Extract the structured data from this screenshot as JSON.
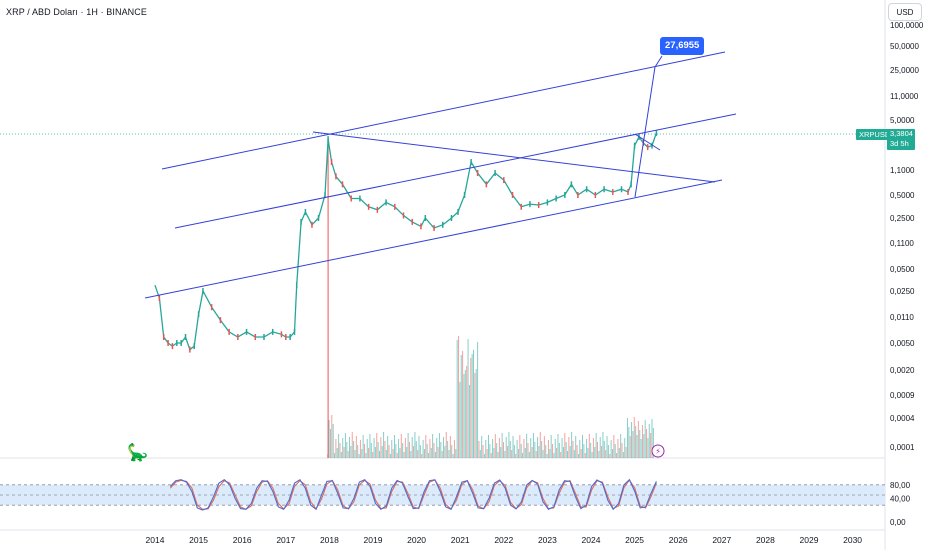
{
  "header": {
    "title": "XRP / ABD Doları · 1H · BINANCE",
    "currency_button": "USD"
  },
  "price_label": {
    "symbol": "XRPUSD",
    "price": "3,3804",
    "countdown": "3d 5h"
  },
  "target_callout": "27,6955",
  "colors": {
    "up": "#26a69a",
    "down": "#ef5350",
    "channel": "#3441d9",
    "rsi_fast": "#4a6bd8",
    "rsi_slow": "#e66a50",
    "rsi_band": "#dcebfb"
  },
  "chart_data": [
    {
      "type": "line",
      "title": "XRP / ABD Doları · 1H · BINANCE",
      "xlabel": "",
      "ylabel": "",
      "y_scale": "log",
      "x_ticks": [
        "2014",
        "2015",
        "2016",
        "2017",
        "2018",
        "2019",
        "2020",
        "2021",
        "2022",
        "2023",
        "2024",
        "2025",
        "2026",
        "2027",
        "2028",
        "2029",
        "2030"
      ],
      "y_ticks": [
        "100,0000",
        "50,0000",
        "25,0000",
        "11,0000",
        "5,0000",
        "1,1000",
        "0,5000",
        "0,2500",
        "0,1100",
        "0,0500",
        "0,0250",
        "0,0110",
        "0,0050",
        "0,0020",
        "0,0009",
        "0,0004",
        "0,0001"
      ],
      "series": [
        {
          "name": "XRPUSD",
          "x": [
            2014.0,
            2014.1,
            2014.2,
            2014.3,
            2014.4,
            2014.5,
            2014.6,
            2014.7,
            2014.8,
            2014.9,
            2015.0,
            2015.1,
            2015.3,
            2015.5,
            2015.7,
            2015.9,
            2016.1,
            2016.3,
            2016.5,
            2016.7,
            2016.9,
            2017.0,
            2017.1,
            2017.2,
            2017.25,
            2017.35,
            2017.45,
            2017.6,
            2017.75,
            2017.9,
            2017.97,
            2018.05,
            2018.15,
            2018.3,
            2018.5,
            2018.7,
            2018.9,
            2019.1,
            2019.3,
            2019.5,
            2019.7,
            2019.9,
            2020.1,
            2020.2,
            2020.4,
            2020.6,
            2020.8,
            2020.95,
            2021.1,
            2021.25,
            2021.4,
            2021.6,
            2021.8,
            2022.0,
            2022.2,
            2022.4,
            2022.6,
            2022.8,
            2023.0,
            2023.2,
            2023.4,
            2023.55,
            2023.7,
            2023.9,
            2024.1,
            2024.3,
            2024.5,
            2024.7,
            2024.85,
            2024.92,
            2025.0,
            2025.1,
            2025.2,
            2025.3,
            2025.4,
            2025.5
          ],
          "values": [
            0.03,
            0.02,
            0.006,
            0.005,
            0.0045,
            0.005,
            0.005,
            0.006,
            0.004,
            0.0045,
            0.012,
            0.025,
            0.015,
            0.01,
            0.007,
            0.006,
            0.007,
            0.006,
            0.006,
            0.007,
            0.0065,
            0.006,
            0.006,
            0.007,
            0.03,
            0.22,
            0.3,
            0.2,
            0.25,
            0.5,
            2.8,
            1.4,
            0.9,
            0.7,
            0.45,
            0.45,
            0.35,
            0.32,
            0.4,
            0.35,
            0.27,
            0.22,
            0.19,
            0.25,
            0.18,
            0.2,
            0.25,
            0.3,
            0.5,
            1.4,
            1.0,
            0.7,
            1.0,
            0.8,
            0.5,
            0.35,
            0.38,
            0.37,
            0.4,
            0.45,
            0.5,
            0.7,
            0.5,
            0.6,
            0.5,
            0.6,
            0.55,
            0.6,
            0.55,
            0.7,
            2.3,
            3.0,
            2.5,
            2.2,
            2.3,
            3.38
          ]
        }
      ],
      "annotations": [
        "27,6955"
      ],
      "last_price": "3,3804"
    },
    {
      "type": "line",
      "title": "",
      "xlabel": "",
      "ylabel": "",
      "y_ticks": [
        "80,00",
        "40,00",
        "0,00"
      ],
      "ylim": [
        0,
        100
      ],
      "bands": [
        20,
        50,
        80
      ],
      "series": [
        {
          "name": "",
          "values": [
            75,
            92,
            95,
            88,
            60,
            12,
            6,
            12,
            45,
            85,
            95,
            80,
            40,
            10,
            8,
            25,
            70,
            92,
            90,
            60,
            15,
            8,
            35,
            85,
            95,
            70,
            20,
            8,
            50,
            90,
            92,
            55,
            12,
            10,
            40,
            88,
            95,
            75,
            25,
            8,
            18,
            70,
            93,
            85,
            45,
            10,
            12,
            60,
            92,
            95,
            60,
            15,
            8,
            45,
            88,
            92,
            55,
            12,
            10,
            40,
            85,
            94,
            70,
            20,
            9,
            30,
            80,
            93,
            82,
            30,
            8,
            15,
            65,
            92,
            90,
            45,
            10,
            20,
            75,
            94,
            85,
            35,
            8,
            25,
            80,
            95,
            60,
            12,
            15,
            55,
            90
          ]
        },
        {
          "name": "",
          "values": [
            70,
            88,
            93,
            90,
            70,
            20,
            8,
            9,
            35,
            75,
            92,
            85,
            50,
            15,
            8,
            18,
            60,
            88,
            92,
            70,
            25,
            9,
            25,
            75,
            92,
            80,
            30,
            9,
            38,
            82,
            93,
            65,
            18,
            9,
            30,
            80,
            93,
            82,
            35,
            10,
            12,
            60,
            90,
            88,
            55,
            15,
            10,
            50,
            88,
            94,
            70,
            22,
            9,
            35,
            82,
            92,
            65,
            18,
            9,
            30,
            78,
            92,
            78,
            28,
            10,
            22,
            72,
            92,
            86,
            40,
            10,
            12,
            55,
            88,
            92,
            55,
            15,
            15,
            65,
            92,
            88,
            45,
            10,
            18,
            72,
            94,
            70,
            18,
            12,
            45,
            85
          ]
        }
      ]
    }
  ]
}
